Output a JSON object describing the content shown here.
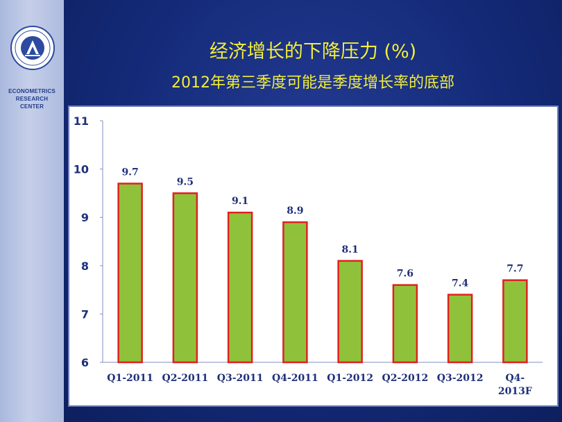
{
  "sidebar": {
    "center_name_lines": [
      "ECONOMETRICS",
      "RESEARCH",
      "CENTER"
    ]
  },
  "header": {
    "title": "经济增长的下降压力 (%)",
    "subtitle": "2012年第三季度可能是季度增长率的底部"
  },
  "colors": {
    "bar_fill": "#8fc23a",
    "bar_stroke": "#e02020",
    "label_color": "#1f2f7a",
    "axis_text": "#1f2f7a",
    "title_color": "#f2ee3a"
  },
  "chart_data": {
    "type": "bar",
    "categories": [
      [
        "Q1-2011"
      ],
      [
        "Q2-2011"
      ],
      [
        "Q3-2011"
      ],
      [
        "Q4-2011"
      ],
      [
        "Q1-2012"
      ],
      [
        "Q2-2012"
      ],
      [
        "Q3-2012"
      ],
      [
        "Q4-",
        "2013F"
      ]
    ],
    "values": [
      9.7,
      9.5,
      9.1,
      8.9,
      8.1,
      7.6,
      7.4,
      7.7
    ],
    "data_labels": [
      "9.7",
      "9.5",
      "9.1",
      "8.9",
      "8.1",
      "7.6",
      "7.4",
      "7.7"
    ],
    "yticks": [
      6,
      7,
      8,
      9,
      10,
      11
    ],
    "ylim": [
      6,
      11
    ],
    "grid": false,
    "legend": "none"
  }
}
